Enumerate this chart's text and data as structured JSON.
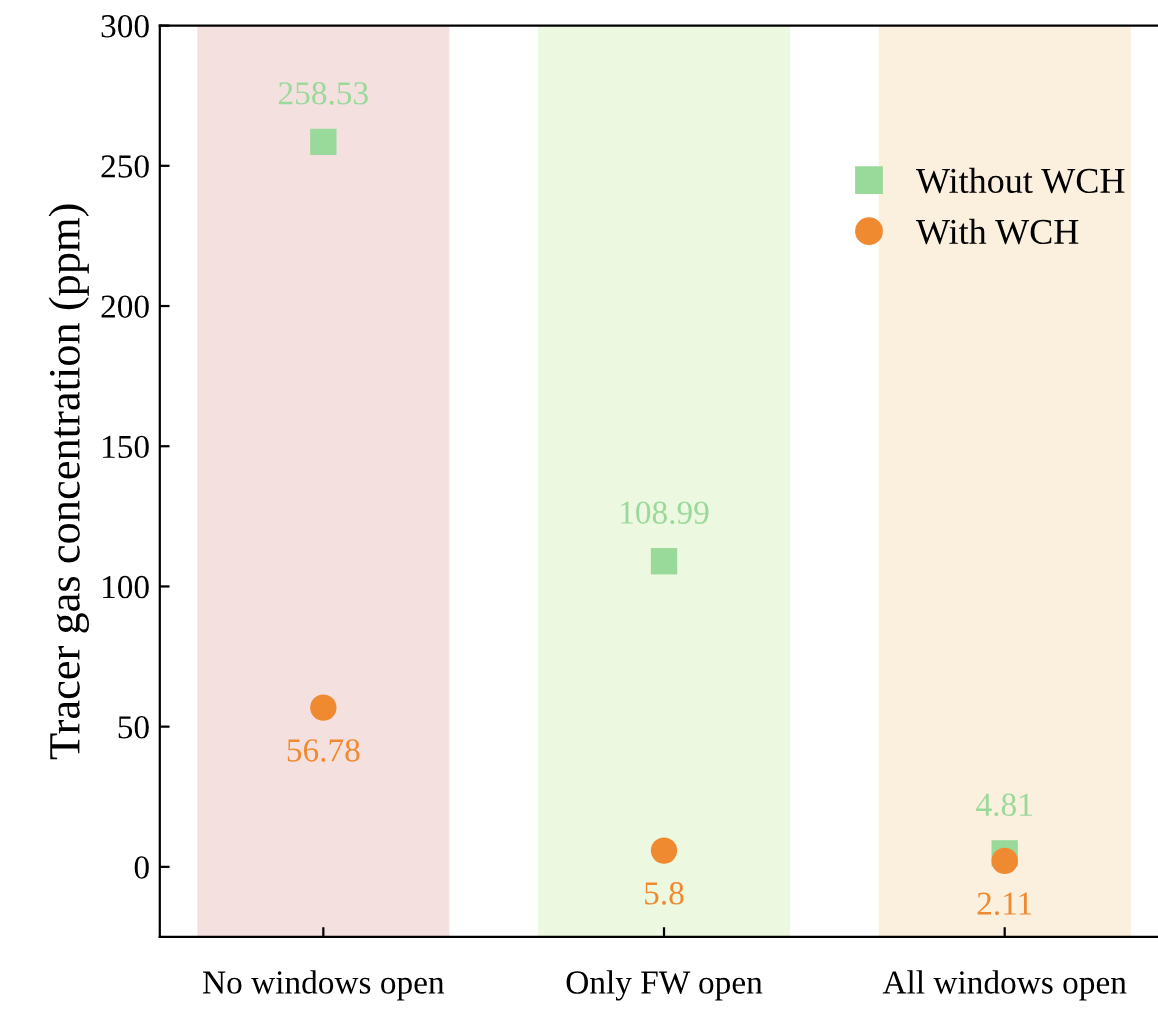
{
  "chart_data": {
    "type": "scatter",
    "ylabel": "Tracer gas concentration (ppm)",
    "categories": [
      "No windows open",
      "Only FW open",
      "All windows open"
    ],
    "series": [
      {
        "name": "Without WCH",
        "color": "#99d999",
        "marker": "square",
        "values": [
          258.53,
          108.99,
          4.81
        ]
      },
      {
        "name": "With WCH",
        "color": "#f08a30",
        "marker": "circle",
        "values": [
          56.78,
          5.8,
          2.11
        ]
      }
    ],
    "bands": [
      {
        "axis": "x",
        "from": "No windows open",
        "to": "No windows open",
        "color": "#f5e0e0"
      },
      {
        "axis": "x",
        "from": "Only FW open",
        "to": "Only FW open",
        "color": "#ecf8df"
      },
      {
        "axis": "x",
        "from": "All windows open",
        "to": "All windows open",
        "color": "#fbefdd"
      }
    ],
    "ylim": [
      -25,
      300
    ],
    "yticks": [
      0,
      50,
      100,
      150,
      200,
      250,
      300
    ],
    "data_labels": true,
    "legend": "top right",
    "grid": false
  }
}
